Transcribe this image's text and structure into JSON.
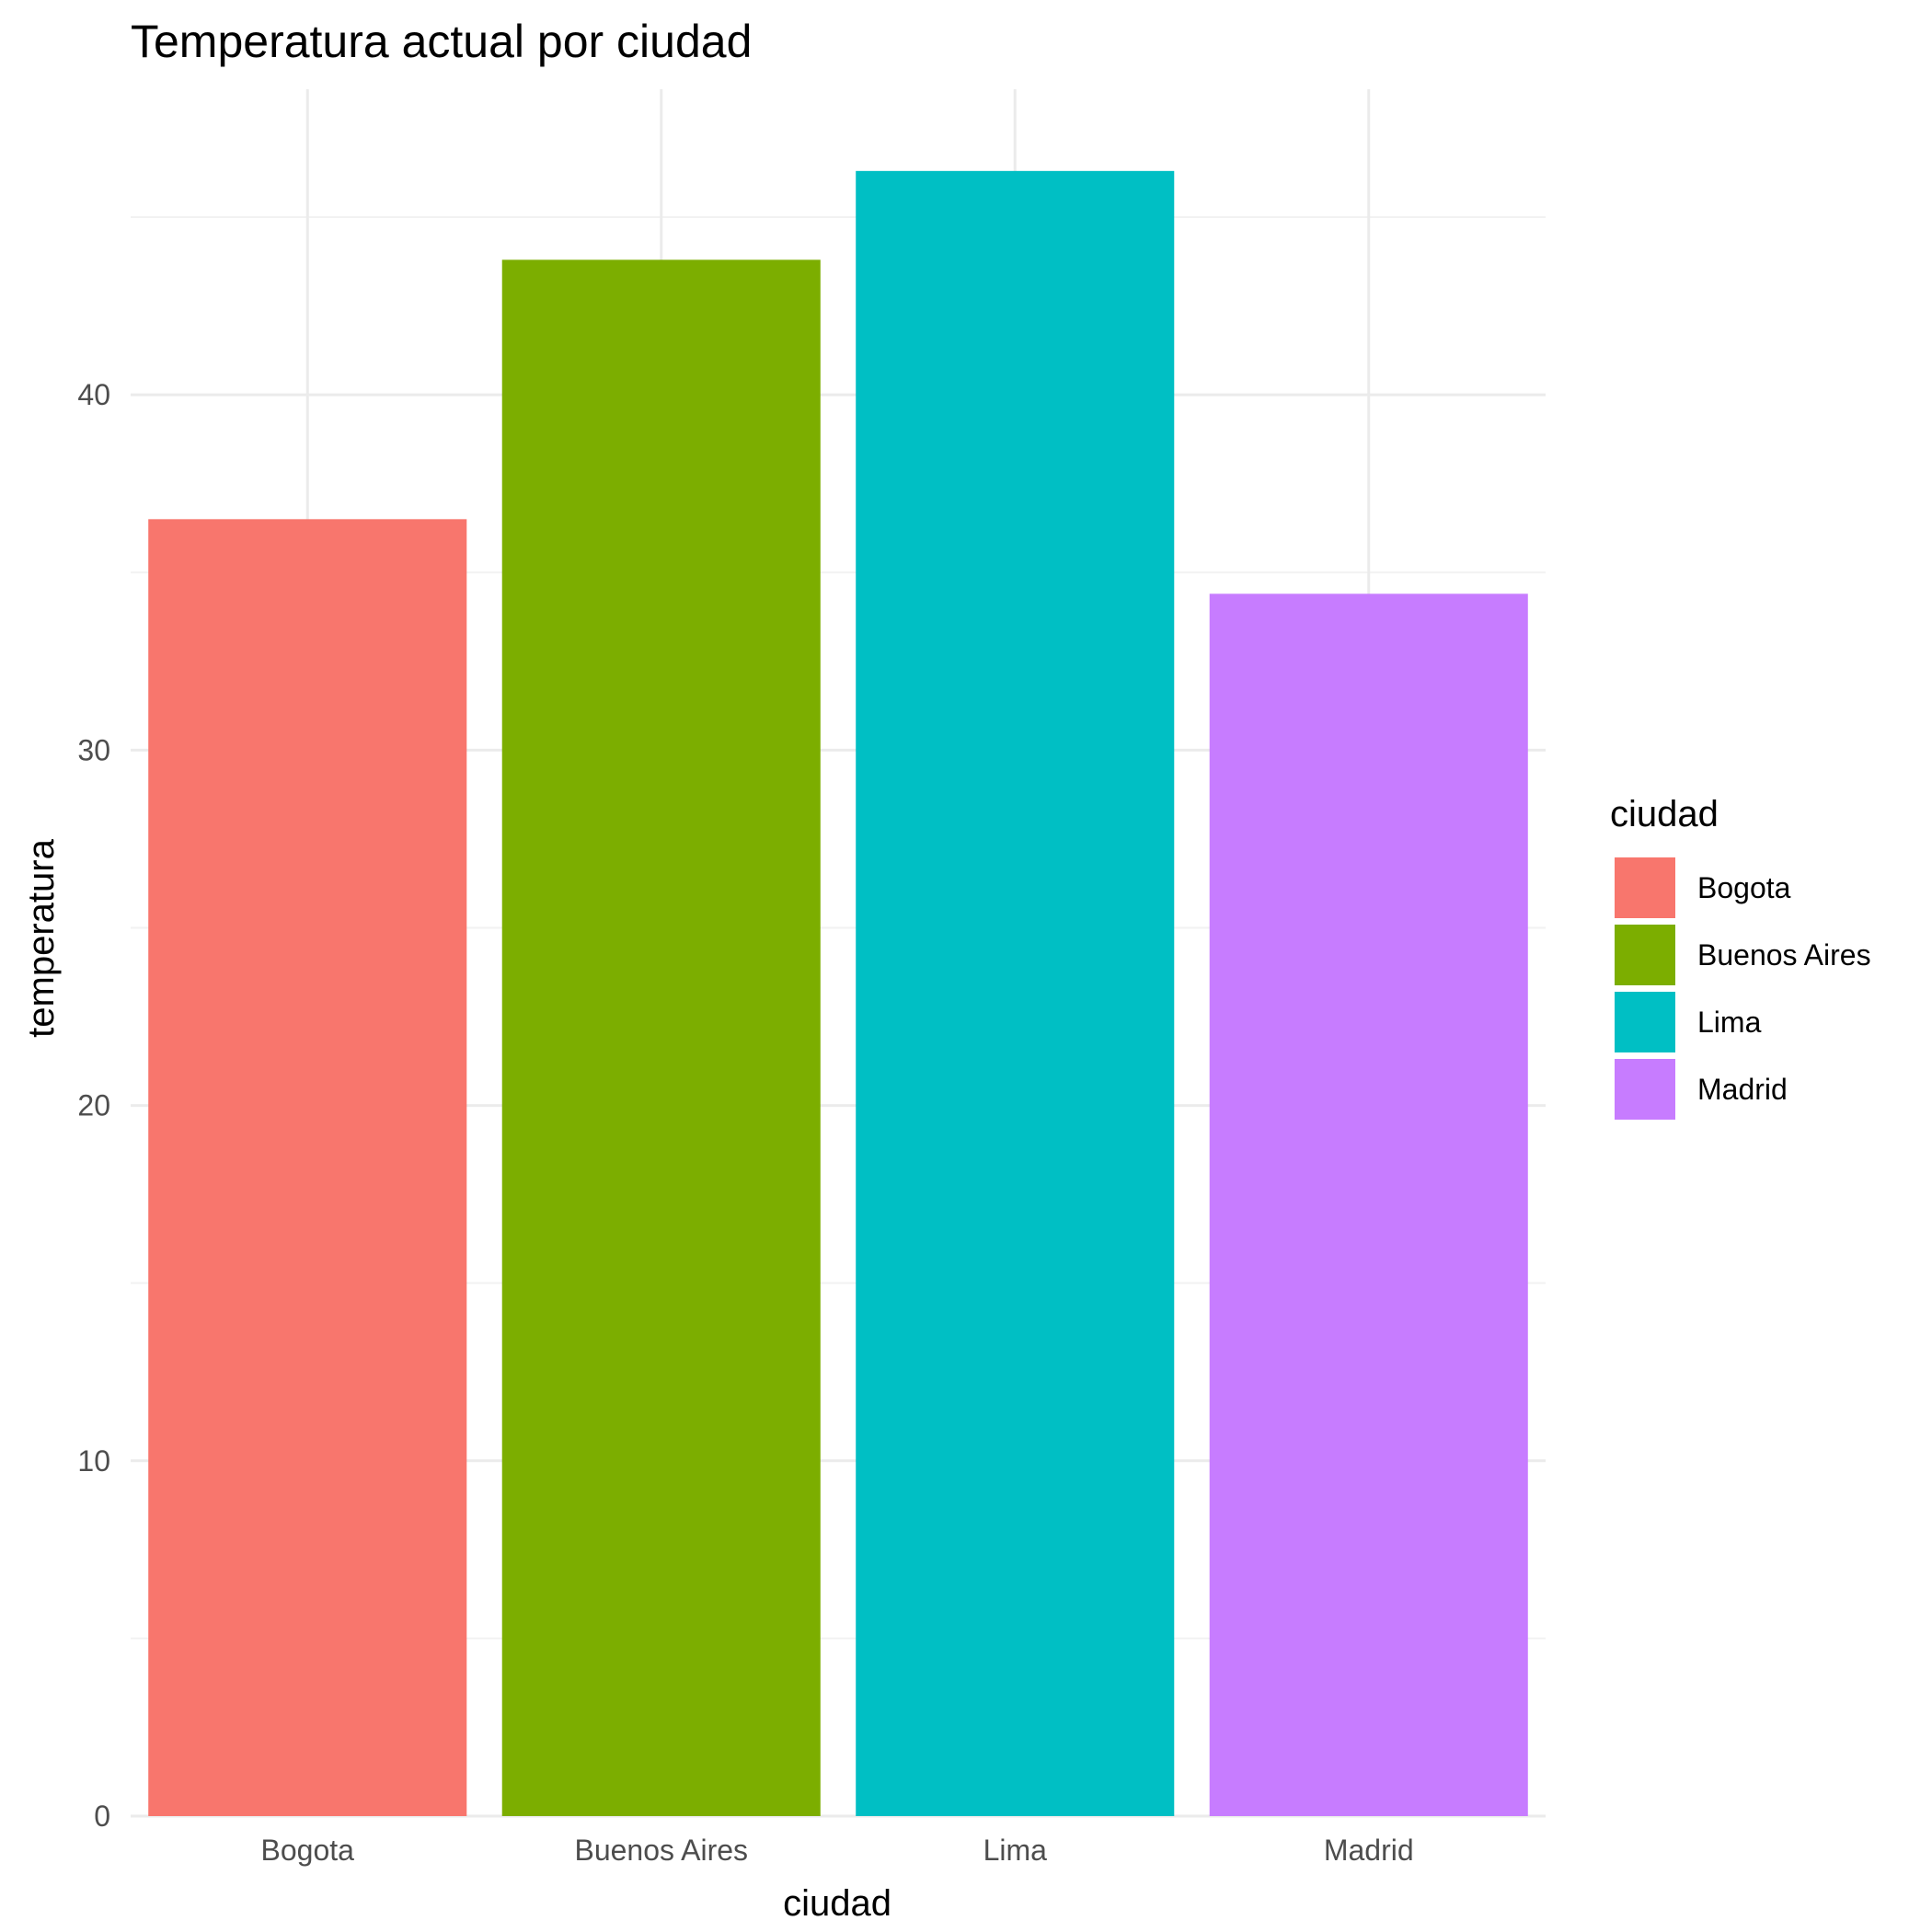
{
  "chart_data": {
    "type": "bar",
    "title": "Temperatura actual por ciudad",
    "xlabel": "ciudad",
    "ylabel": "temperatura",
    "categories": [
      "Bogota",
      "Buenos Aires",
      "Lima",
      "Madrid"
    ],
    "values": [
      36.5,
      43.8,
      46.3,
      34.4
    ],
    "colors": [
      "#F8766D",
      "#7CAE00",
      "#00BFC4",
      "#C77CFF"
    ],
    "ylim": [
      0,
      48.6
    ],
    "yticks": [
      0,
      10,
      20,
      30,
      40
    ],
    "grid": true,
    "legend": {
      "title": "ciudad",
      "position": "right",
      "items": [
        "Bogota",
        "Buenos Aires",
        "Lima",
        "Madrid"
      ]
    }
  }
}
